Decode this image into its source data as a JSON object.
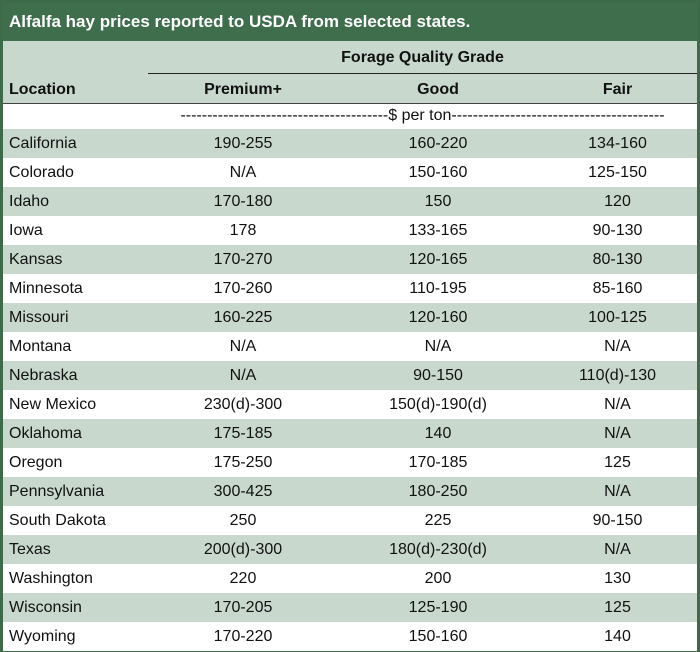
{
  "title": "Alfalfa hay prices reported to USDA from selected states.",
  "header": {
    "group_label": "Forage Quality Grade",
    "location_label": "Location",
    "columns": [
      "Premium+",
      "Good",
      "Fair"
    ],
    "unit": "---------------------------------------$ per ton----------------------------------------"
  },
  "rows": [
    {
      "location": "California",
      "premium": "190-255",
      "good": "160-220",
      "fair": "134-160"
    },
    {
      "location": "Colorado",
      "premium": "N/A",
      "good": "150-160",
      "fair": "125-150"
    },
    {
      "location": "Idaho",
      "premium": "170-180",
      "good": "150",
      "fair": "120"
    },
    {
      "location": "Iowa",
      "premium": "178",
      "good": "133-165",
      "fair": "90-130"
    },
    {
      "location": "Kansas",
      "premium": "170-270",
      "good": "120-165",
      "fair": "80-130"
    },
    {
      "location": "Minnesota",
      "premium": "170-260",
      "good": "110-195",
      "fair": "85-160"
    },
    {
      "location": "Missouri",
      "premium": "160-225",
      "good": "120-160",
      "fair": "100-125"
    },
    {
      "location": "Montana",
      "premium": "N/A",
      "good": "N/A",
      "fair": "N/A"
    },
    {
      "location": "Nebraska",
      "premium": "N/A",
      "good": "90-150",
      "fair": "110(d)-130"
    },
    {
      "location": "New Mexico",
      "premium": "230(d)-300",
      "good": "150(d)-190(d)",
      "fair": "N/A"
    },
    {
      "location": "Oklahoma",
      "premium": "175-185",
      "good": "140",
      "fair": "N/A"
    },
    {
      "location": "Oregon",
      "premium": "175-250",
      "good": "170-185",
      "fair": "125"
    },
    {
      "location": "Pennsylvania",
      "premium": "300-425",
      "good": "180-250",
      "fair": "N/A"
    },
    {
      "location": "South Dakota",
      "premium": "250",
      "good": "225",
      "fair": "90-150"
    },
    {
      "location": "Texas",
      "premium": "200(d)-300",
      "good": "180(d)-230(d)",
      "fair": "N/A"
    },
    {
      "location": "Washington",
      "premium": "220",
      "good": "200",
      "fair": "130"
    },
    {
      "location": "Wisconsin",
      "premium": "170-205",
      "good": "125-190",
      "fair": "125"
    },
    {
      "location": "Wyoming",
      "premium": "170-220",
      "good": "150-160",
      "fair": "140"
    }
  ],
  "colors": {
    "title_bg": "#3f6e4c",
    "shade": "#c8d8cc",
    "border": "#3d6b4a"
  }
}
